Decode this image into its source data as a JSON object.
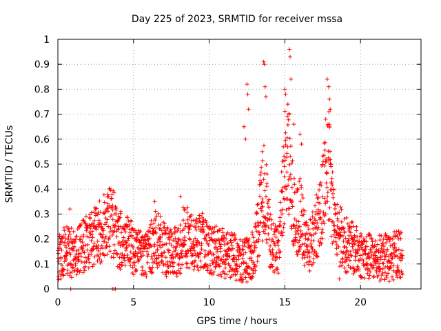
{
  "chart_data": {
    "type": "scatter",
    "title": "Day 225 of 2023, SRMTID for receiver mssa",
    "xlabel": "GPS time / hours",
    "ylabel": "SRMTID / TECUs",
    "xlim": [
      0,
      24
    ],
    "ylim": [
      0,
      1
    ],
    "grid": true,
    "marker": "plus",
    "color": "#ff0000",
    "xticks": [
      0,
      5,
      10,
      15,
      20
    ],
    "xtick_labels": [
      "0",
      "5",
      "10",
      "15",
      "20"
    ],
    "yticks": [
      0,
      0.1,
      0.2,
      0.3,
      0.4,
      0.5,
      0.6,
      0.7,
      0.8,
      0.9,
      1
    ],
    "ytick_labels": [
      "0",
      "0.1",
      "0.2",
      "0.3",
      "0.4",
      "0.5",
      "0.6",
      "0.7",
      "0.8",
      "0.9",
      "1"
    ],
    "series": [
      {
        "name": "SRMTID",
        "trend": {
          "x": [
            0,
            0.5,
            1,
            1.5,
            2,
            2.5,
            3,
            3.3,
            3.6,
            4,
            4.5,
            5,
            5.5,
            6,
            6.5,
            7,
            7.5,
            8,
            8.3,
            8.7,
            9,
            9.5,
            10,
            10.5,
            11,
            11.5,
            12,
            12.3,
            12.6,
            13,
            13.3,
            13.6,
            13.8,
            14,
            14.3,
            14.6,
            15,
            15.2,
            15.4,
            15.7,
            16,
            16.3,
            16.6,
            17,
            17.3,
            17.6,
            17.9,
            18.2,
            18.6,
            19,
            19.5,
            20,
            20.5,
            21,
            21.5,
            22,
            22.5,
            22.8
          ],
          "y": [
            0.13,
            0.16,
            0.14,
            0.17,
            0.19,
            0.21,
            0.24,
            0.28,
            0.27,
            0.2,
            0.18,
            0.16,
            0.14,
            0.15,
            0.2,
            0.16,
            0.14,
            0.15,
            0.22,
            0.2,
            0.18,
            0.19,
            0.17,
            0.15,
            0.14,
            0.13,
            0.12,
            0.11,
            0.12,
            0.14,
            0.28,
            0.42,
            0.35,
            0.2,
            0.15,
            0.16,
            0.5,
            0.55,
            0.4,
            0.25,
            0.3,
            0.2,
            0.18,
            0.22,
            0.3,
            0.42,
            0.5,
            0.3,
            0.22,
            0.18,
            0.16,
            0.14,
            0.13,
            0.12,
            0.13,
            0.12,
            0.15,
            0.13
          ]
        },
        "extreme_points": [
          {
            "x": 12.5,
            "y": 0.82
          },
          {
            "x": 12.55,
            "y": 0.78
          },
          {
            "x": 12.6,
            "y": 0.72
          },
          {
            "x": 13.6,
            "y": 0.91
          },
          {
            "x": 13.65,
            "y": 0.9
          },
          {
            "x": 13.7,
            "y": 0.81
          },
          {
            "x": 13.75,
            "y": 0.77
          },
          {
            "x": 15.3,
            "y": 0.96
          },
          {
            "x": 15.35,
            "y": 0.93
          },
          {
            "x": 15.4,
            "y": 0.84
          },
          {
            "x": 15.0,
            "y": 0.8
          },
          {
            "x": 15.05,
            "y": 0.78
          },
          {
            "x": 17.8,
            "y": 0.84
          },
          {
            "x": 17.9,
            "y": 0.81
          },
          {
            "x": 17.95,
            "y": 0.76
          },
          {
            "x": 18.0,
            "y": 0.72
          },
          {
            "x": 12.3,
            "y": 0.65
          },
          {
            "x": 12.4,
            "y": 0.6
          },
          {
            "x": 15.2,
            "y": 0.74
          },
          {
            "x": 15.6,
            "y": 0.66
          },
          {
            "x": 17.7,
            "y": 0.68
          },
          {
            "x": 13.5,
            "y": 0.55
          },
          {
            "x": 16.1,
            "y": 0.58
          },
          {
            "x": 16.0,
            "y": 0.62
          },
          {
            "x": 8.1,
            "y": 0.37
          },
          {
            "x": 6.4,
            "y": 0.35
          },
          {
            "x": 3.3,
            "y": 0.38
          },
          {
            "x": 0.8,
            "y": 0.32
          },
          {
            "x": 0.85,
            "y": 0.0
          },
          {
            "x": 3.6,
            "y": 0.0
          },
          {
            "x": 3.7,
            "y": 0.0
          },
          {
            "x": 3.8,
            "y": 0.0
          },
          {
            "x": 21.9,
            "y": 0.03
          },
          {
            "x": 18.6,
            "y": 0.04
          },
          {
            "x": 12.8,
            "y": 0.04
          },
          {
            "x": 0.2,
            "y": 0.04
          }
        ],
        "x_range": [
          0,
          22.8
        ],
        "sample_step_hours": 0.012
      }
    ]
  }
}
